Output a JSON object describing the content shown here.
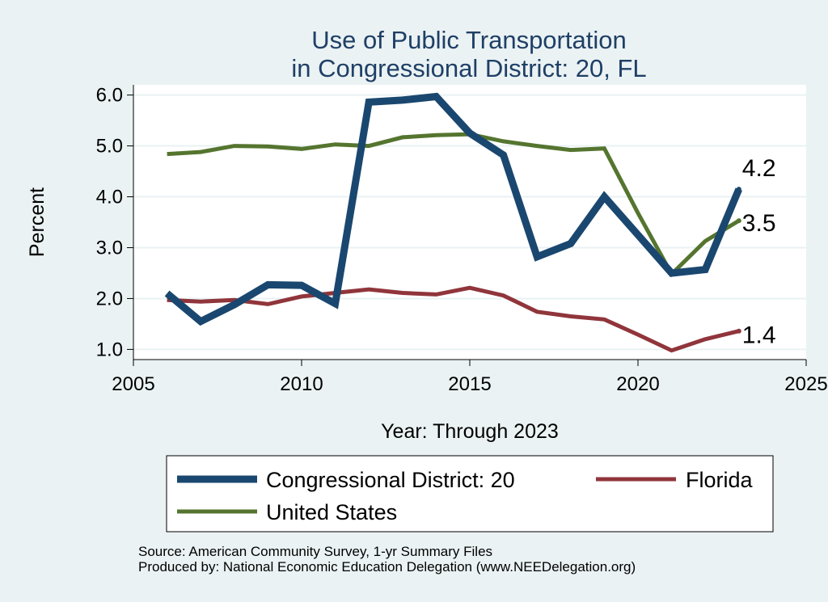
{
  "chart_data": {
    "type": "line",
    "title": [
      "Use of Public Transportation",
      "in Congressional District: 20, FL"
    ],
    "xlabel": "Year: Through 2023",
    "ylabel": "Percent",
    "xlim": [
      2005,
      2025
    ],
    "ylim": [
      0.8,
      6.2
    ],
    "xticks": [
      2005,
      2010,
      2015,
      2020,
      2025
    ],
    "yticks": [
      1.0,
      2.0,
      3.0,
      4.0,
      5.0,
      6.0
    ],
    "ytick_labels": [
      "1.0",
      "2.0",
      "3.0",
      "4.0",
      "5.0",
      "6.0"
    ],
    "grid": true,
    "legend_position": "bottom",
    "series": [
      {
        "name": "Congressional District: 20",
        "color": "#1a476f",
        "width": "thick",
        "x": [
          2006,
          2007,
          2008,
          2009,
          2010,
          2011,
          2012,
          2013,
          2014,
          2015,
          2016,
          2017,
          2018,
          2019,
          2020,
          2021,
          2022,
          2023
        ],
        "y": [
          2.1,
          1.55,
          1.88,
          2.27,
          2.26,
          1.9,
          5.86,
          5.9,
          5.97,
          5.25,
          4.82,
          2.82,
          3.08,
          4.0,
          3.25,
          2.5,
          2.57,
          4.15
        ],
        "end_label": "4.2"
      },
      {
        "name": "Florida",
        "color": "#90353b",
        "width": "normal",
        "x": [
          2006,
          2007,
          2008,
          2009,
          2010,
          2011,
          2012,
          2013,
          2014,
          2015,
          2016,
          2017,
          2018,
          2019,
          2020,
          2021,
          2022,
          2023
        ],
        "y": [
          1.97,
          1.94,
          1.97,
          1.89,
          2.04,
          2.11,
          2.18,
          2.11,
          2.08,
          2.21,
          2.06,
          1.74,
          1.65,
          1.59,
          1.29,
          0.98,
          1.2,
          1.36
        ],
        "end_label": "1.4"
      },
      {
        "name": "United States",
        "color": "#55752f",
        "width": "normal",
        "x": [
          2006,
          2007,
          2008,
          2009,
          2010,
          2011,
          2012,
          2013,
          2014,
          2015,
          2016,
          2017,
          2018,
          2019,
          2020,
          2021,
          2022,
          2023
        ],
        "y": [
          4.84,
          4.88,
          5.0,
          4.99,
          4.94,
          5.03,
          5.0,
          5.17,
          5.21,
          5.23,
          5.09,
          5.0,
          4.92,
          4.95,
          3.68,
          2.48,
          3.13,
          3.53
        ],
        "end_label": "3.5"
      }
    ],
    "notes": [
      "Source: American Community Survey, 1-yr Summary Files",
      "Produced by: National Economic Education Delegation (www.NEEDelegation.org)"
    ]
  }
}
